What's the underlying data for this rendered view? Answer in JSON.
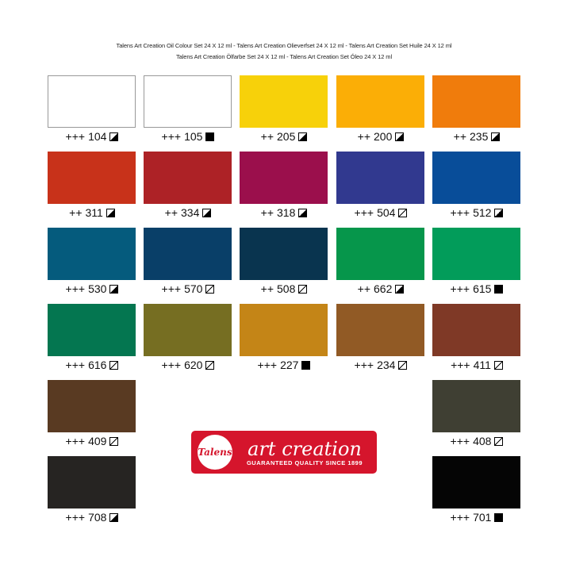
{
  "header": {
    "line1": "Talens Art Creation Oil Colour Set 24 X 12 ml - Talens Art Creation Olieverfset 24 X 12 ml - Talens Art Creation Set Huile 24 X 12 ml",
    "line2": "Talens Art Creation Ölfarbe Set 24 X 12 ml - Talens Art Creation Set Óleo 24 X 12 ml"
  },
  "logo": {
    "seal": "Talens",
    "brand": "art creation",
    "tagline": "GUARANTEED QUALITY SINCE 1899",
    "color": "#d5152c"
  },
  "colors": [
    {
      "lightfast": "+++",
      "code": "104",
      "opacity": "semi",
      "hex": "#ffffff"
    },
    {
      "lightfast": "+++",
      "code": "105",
      "opacity": "opaque",
      "hex": "#ffffff"
    },
    {
      "lightfast": "++",
      "code": "205",
      "opacity": "semi",
      "hex": "#f7d10a"
    },
    {
      "lightfast": "++",
      "code": "200",
      "opacity": "semi",
      "hex": "#fbae06"
    },
    {
      "lightfast": "++",
      "code": "235",
      "opacity": "semi",
      "hex": "#f07c0c"
    },
    {
      "lightfast": "++",
      "code": "311",
      "opacity": "semi",
      "hex": "#c8321a"
    },
    {
      "lightfast": "++",
      "code": "334",
      "opacity": "semi",
      "hex": "#ad2226"
    },
    {
      "lightfast": "++",
      "code": "318",
      "opacity": "semi",
      "hex": "#9b0f4c"
    },
    {
      "lightfast": "+++",
      "code": "504",
      "opacity": "trans",
      "hex": "#31398f"
    },
    {
      "lightfast": "+++",
      "code": "512",
      "opacity": "semi",
      "hex": "#084d99"
    },
    {
      "lightfast": "+++",
      "code": "530",
      "opacity": "semi",
      "hex": "#055b7d"
    },
    {
      "lightfast": "+++",
      "code": "570",
      "opacity": "trans",
      "hex": "#093f68"
    },
    {
      "lightfast": "++",
      "code": "508",
      "opacity": "trans",
      "hex": "#09344f"
    },
    {
      "lightfast": "++",
      "code": "662",
      "opacity": "semi",
      "hex": "#06964b"
    },
    {
      "lightfast": "+++",
      "code": "615",
      "opacity": "opaque",
      "hex": "#029c5a"
    },
    {
      "lightfast": "+++",
      "code": "616",
      "opacity": "trans",
      "hex": "#047650"
    },
    {
      "lightfast": "+++",
      "code": "620",
      "opacity": "trans",
      "hex": "#766e22"
    },
    {
      "lightfast": "+++",
      "code": "227",
      "opacity": "opaque",
      "hex": "#c48517"
    },
    {
      "lightfast": "+++",
      "code": "234",
      "opacity": "trans",
      "hex": "#915a25"
    },
    {
      "lightfast": "+++",
      "code": "411",
      "opacity": "trans",
      "hex": "#7f3926"
    },
    {
      "lightfast": "+++",
      "code": "409",
      "opacity": "trans",
      "hex": "#593a22"
    },
    {
      "lightfast": "+++",
      "code": "408",
      "opacity": "trans",
      "hex": "#3f3f33"
    },
    {
      "lightfast": "+++",
      "code": "708",
      "opacity": "semi",
      "hex": "#262422"
    },
    {
      "lightfast": "+++",
      "code": "701",
      "opacity": "opaque",
      "hex": "#050505"
    }
  ]
}
